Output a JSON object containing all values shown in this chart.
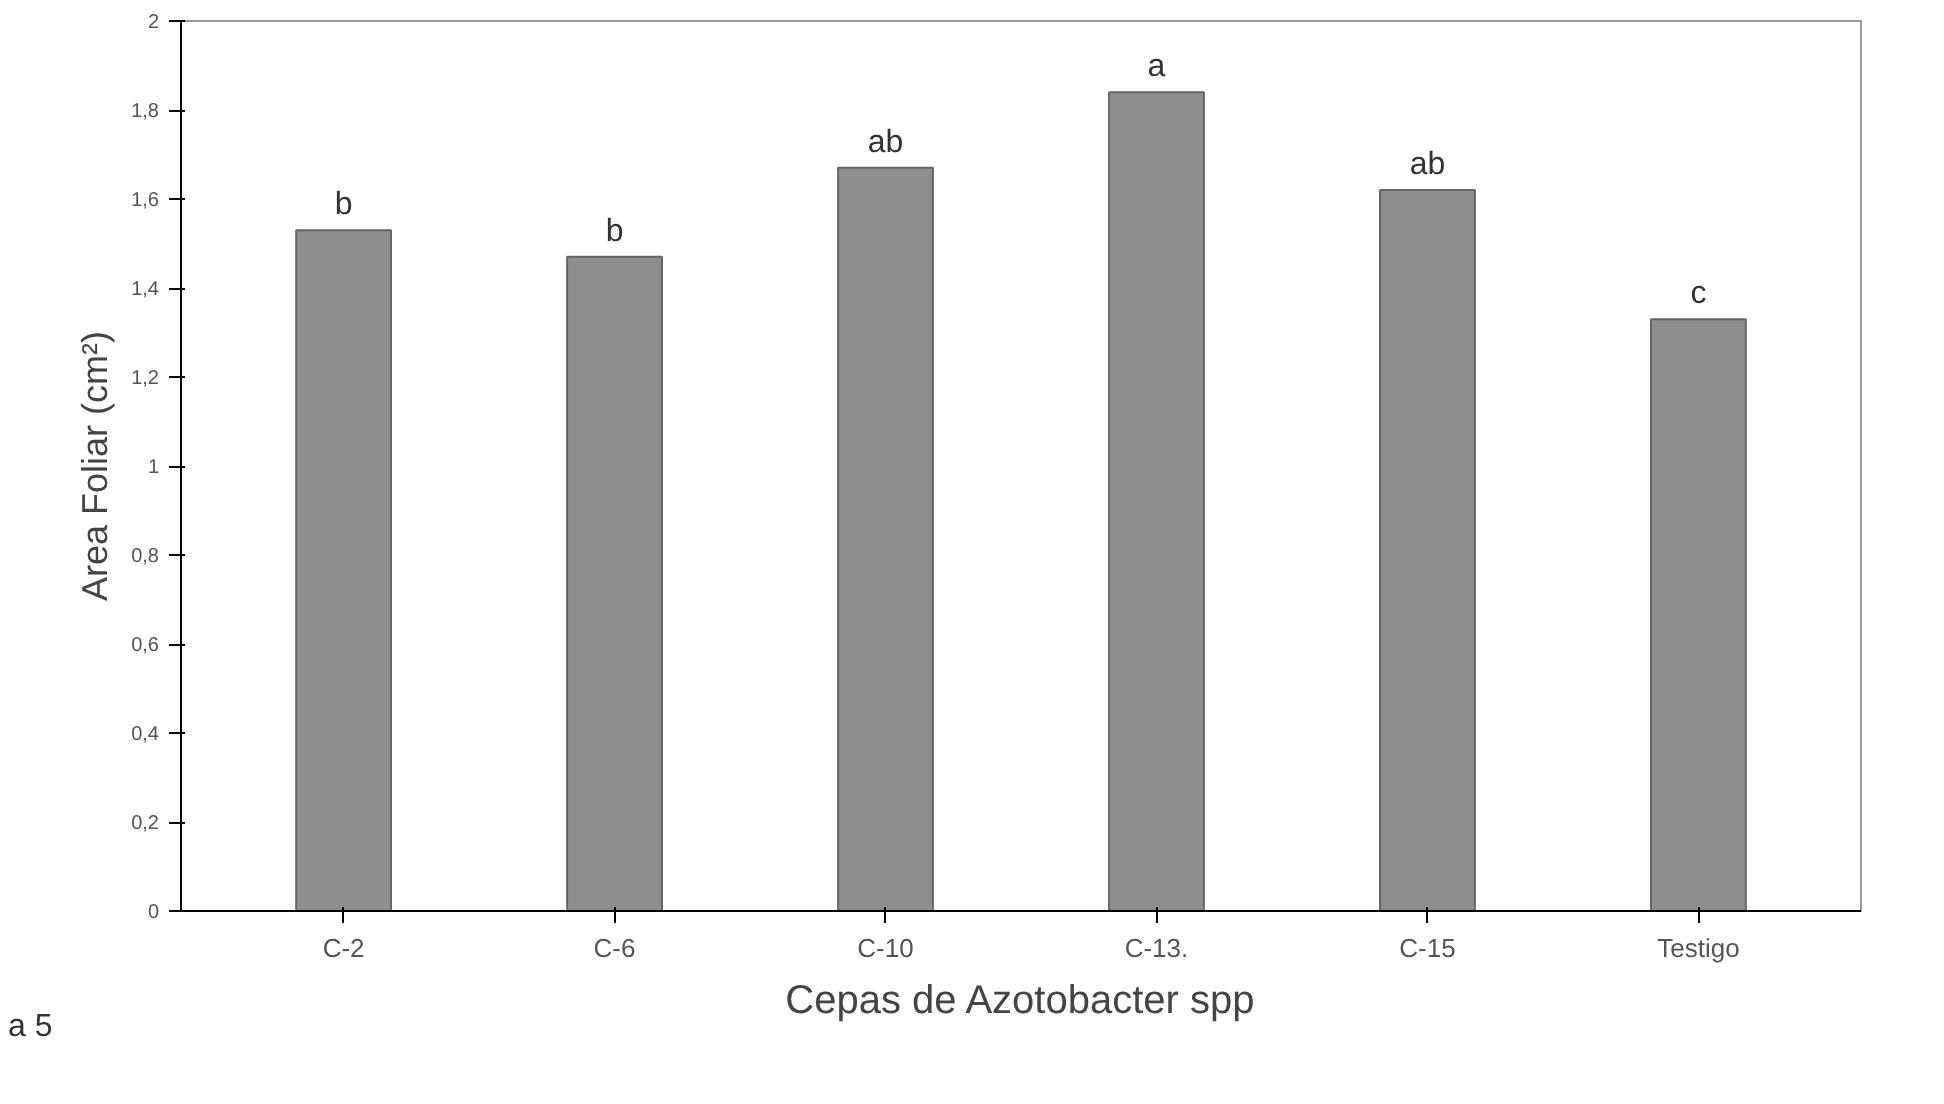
{
  "chart_data": {
    "type": "bar",
    "xlabel": "Cepas de Azotobacter spp",
    "ylabel": "Area Foliar (cm²)",
    "categories": [
      "C-2",
      "C-6",
      "C-10",
      "C-13.",
      "C-15",
      "Testigo"
    ],
    "values": [
      1.53,
      1.47,
      1.67,
      1.84,
      1.62,
      1.33
    ],
    "color": "#8e8e8e",
    "ylim": [
      0,
      2
    ],
    "yticks": [
      0,
      {
        "value": 0.2,
        "label": "0,2"
      },
      {
        "value": 0.4,
        "label": "0,4"
      },
      {
        "value": 0.6,
        "label": "0,6"
      },
      {
        "value": 0.8,
        "label": "0,8"
      },
      1,
      {
        "value": 1.2,
        "label": "1,2"
      },
      {
        "value": 1.4,
        "label": "1,4"
      },
      {
        "value": 1.6,
        "label": "1,6"
      },
      {
        "value": 1.8,
        "label": "1,8"
      },
      2
    ],
    "grid": false,
    "annotations": [
      {
        "text": "b",
        "x": "C-2",
        "y": 1.53
      },
      {
        "text": "b",
        "x": "C-6",
        "y": 1.47
      },
      {
        "text": "ab",
        "x": "C-10",
        "y": 1.67
      },
      {
        "text": "a",
        "x": "C-13.",
        "y": 1.84
      },
      {
        "text": "ab",
        "x": "C-15",
        "y": 1.62
      },
      {
        "text": "c",
        "x": "Testigo",
        "y": 1.33
      },
      "a 5"
    ]
  }
}
